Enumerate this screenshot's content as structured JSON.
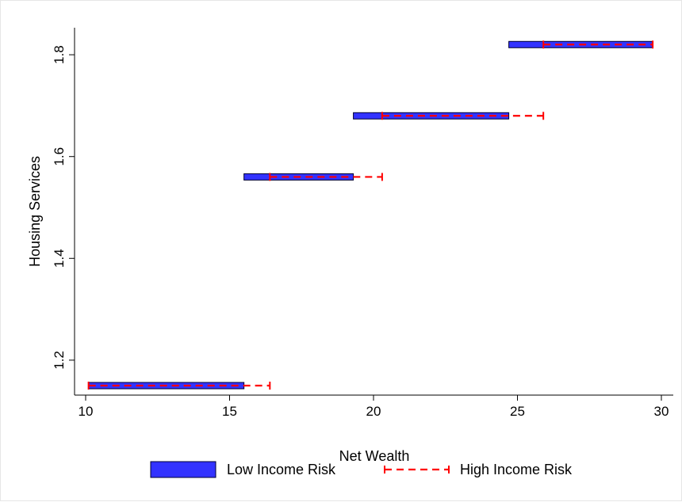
{
  "chart_data": {
    "type": "range-bar",
    "xlabel": "Net Wealth",
    "ylabel": "Housing Services",
    "xlim": [
      10,
      30
    ],
    "ylim": [
      1.15,
      1.85
    ],
    "x_ticks": [
      10,
      15,
      20,
      25,
      30
    ],
    "y_ticks": [
      1.2,
      1.4,
      1.6,
      1.8
    ],
    "y_tick_labels": [
      "1.2",
      "1.4",
      "1.6",
      "1.8"
    ],
    "grid": false,
    "legend_position": "bottom",
    "series": [
      {
        "name": "Low Income Risk",
        "style": "bar",
        "color": "#3333ff",
        "ranges": [
          {
            "y": 1.15,
            "xmin": 10.1,
            "xmax": 15.5
          },
          {
            "y": 1.56,
            "xmin": 15.5,
            "xmax": 19.3
          },
          {
            "y": 1.68,
            "xmin": 19.3,
            "xmax": 24.7
          },
          {
            "y": 1.82,
            "xmin": 24.7,
            "xmax": 29.7
          }
        ]
      },
      {
        "name": "High Income Risk",
        "style": "dashed-capped",
        "color": "#ff0000",
        "ranges": [
          {
            "y": 1.15,
            "xmin": 10.1,
            "xmax": 16.4
          },
          {
            "y": 1.56,
            "xmin": 16.4,
            "xmax": 20.3
          },
          {
            "y": 1.68,
            "xmin": 20.3,
            "xmax": 25.9
          },
          {
            "y": 1.82,
            "xmin": 25.9,
            "xmax": 29.7
          }
        ]
      }
    ]
  }
}
